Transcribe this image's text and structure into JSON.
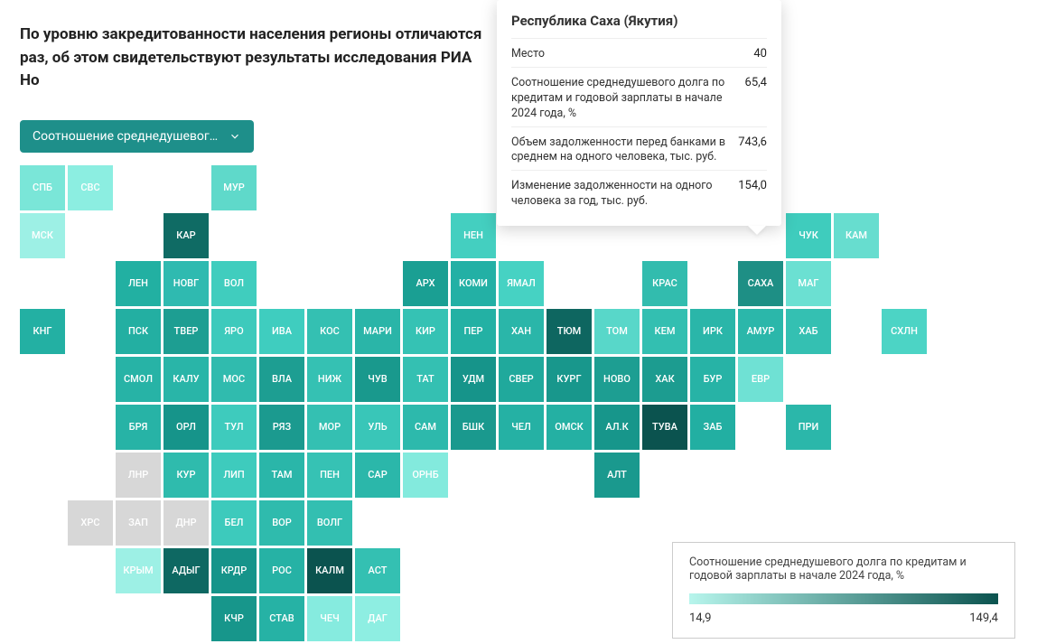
{
  "intro_text": "По уровню закредитованности населения регионы отличаются раз, об этом свидетельствуют результаты исследования РИА Но",
  "selector_label": "Соотношение среднедушевог…",
  "cell": {
    "size": 50,
    "gap": 3,
    "label_color": "#ffffff",
    "label_fontsize": 11
  },
  "tooltip": {
    "title": "Республика Саха (Якутия)",
    "rows": [
      {
        "label": "Место",
        "value": "40"
      },
      {
        "label": "Соотношение среднедушевого долга по кредитам и годовой зарплаты в начале 2024 года, %",
        "value": "65,4"
      },
      {
        "label": "Объем задолженности перед банками в среднем на одного человека, тыс. руб.",
        "value": "743,6"
      },
      {
        "label": "Изменение задолженности на одного человека за год, тыс. руб.",
        "value": "154,0"
      }
    ]
  },
  "legend": {
    "title": "Соотношение среднедушевого долга по кредитам и годовой зарплаты в начале 2024 года, %",
    "min": "14,9",
    "max": "149,4",
    "gradient_start": "#b7f5ec",
    "gradient_end": "#0b534f"
  },
  "regions": [
    {
      "code": "СПБ",
      "row": 0,
      "col": 0,
      "color": "#7ae6d8"
    },
    {
      "code": "СВС",
      "row": 0,
      "col": 1,
      "color": "#8ceee1"
    },
    {
      "code": "МУР",
      "row": 0,
      "col": 4,
      "color": "#5fd9ca"
    },
    {
      "code": "МСК",
      "row": 1,
      "col": 0,
      "color": "#9df0e5"
    },
    {
      "code": "КАР",
      "row": 1,
      "col": 3,
      "color": "#0f6b64"
    },
    {
      "code": "НЕН",
      "row": 1,
      "col": 9,
      "color": "#44cfc0"
    },
    {
      "code": "ЧУК",
      "row": 1,
      "col": 16,
      "color": "#3fccbd"
    },
    {
      "code": "КАМ",
      "row": 1,
      "col": 17,
      "color": "#67ddcf"
    },
    {
      "code": "ЛЕН",
      "row": 2,
      "col": 2,
      "color": "#22b0a2"
    },
    {
      "code": "НОВГ",
      "row": 2,
      "col": 3,
      "color": "#2fbab0"
    },
    {
      "code": "ВОЛ",
      "row": 2,
      "col": 4,
      "color": "#40cdbe"
    },
    {
      "code": "АРХ",
      "row": 2,
      "col": 8,
      "color": "#1a9f93"
    },
    {
      "code": "КОМИ",
      "row": 2,
      "col": 9,
      "color": "#23b0a5"
    },
    {
      "code": "ЯМАЛ",
      "row": 2,
      "col": 10,
      "color": "#46d2c3"
    },
    {
      "code": "КРАС",
      "row": 2,
      "col": 13,
      "color": "#32bcae"
    },
    {
      "code": "САХА",
      "row": 2,
      "col": 15,
      "color": "#1e8f85"
    },
    {
      "code": "МАГ",
      "row": 2,
      "col": 16,
      "color": "#6be0d2"
    },
    {
      "code": "КНГ",
      "row": 3,
      "col": 0,
      "color": "#23b0a3"
    },
    {
      "code": "ПСК",
      "row": 3,
      "col": 2,
      "color": "#23afa2"
    },
    {
      "code": "ТВЕР",
      "row": 3,
      "col": 3,
      "color": "#1d9e92"
    },
    {
      "code": "ЯРО",
      "row": 3,
      "col": 4,
      "color": "#3dcabc"
    },
    {
      "code": "ИВА",
      "row": 3,
      "col": 5,
      "color": "#3fcdbf"
    },
    {
      "code": "КОС",
      "row": 3,
      "col": 6,
      "color": "#34c0b2"
    },
    {
      "code": "МАРИ",
      "row": 3,
      "col": 7,
      "color": "#2ab5a8"
    },
    {
      "code": "КИР",
      "row": 3,
      "col": 8,
      "color": "#35c2b4"
    },
    {
      "code": "ПЕР",
      "row": 3,
      "col": 9,
      "color": "#23b1a4"
    },
    {
      "code": "ХАН",
      "row": 3,
      "col": 10,
      "color": "#2ab6a9"
    },
    {
      "code": "ТЮМ",
      "row": 3,
      "col": 11,
      "color": "#0e6660"
    },
    {
      "code": "ТОМ",
      "row": 3,
      "col": 12,
      "color": "#58d7c9"
    },
    {
      "code": "КЕМ",
      "row": 3,
      "col": 13,
      "color": "#33bfb1"
    },
    {
      "code": "ИРК",
      "row": 3,
      "col": 14,
      "color": "#2ab6a9"
    },
    {
      "code": "АМУР",
      "row": 3,
      "col": 15,
      "color": "#2bb7aa"
    },
    {
      "code": "ХАБ",
      "row": 3,
      "col": 16,
      "color": "#34c0b2"
    },
    {
      "code": "СХЛН",
      "row": 3,
      "col": 18,
      "color": "#4cd4c5"
    },
    {
      "code": "СМОЛ",
      "row": 4,
      "col": 2,
      "color": "#27b3a6"
    },
    {
      "code": "КАЛУ",
      "row": 4,
      "col": 3,
      "color": "#29b5a8"
    },
    {
      "code": "МОС",
      "row": 4,
      "col": 4,
      "color": "#30bbae"
    },
    {
      "code": "ВЛА",
      "row": 4,
      "col": 5,
      "color": "#1d9e92"
    },
    {
      "code": "НИЖ",
      "row": 4,
      "col": 6,
      "color": "#35c1b3"
    },
    {
      "code": "ЧУВ",
      "row": 4,
      "col": 7,
      "color": "#19998d"
    },
    {
      "code": "ТАТ",
      "row": 4,
      "col": 8,
      "color": "#34c0b2"
    },
    {
      "code": "УДМ",
      "row": 4,
      "col": 9,
      "color": "#16948a"
    },
    {
      "code": "СВЕР",
      "row": 4,
      "col": 10,
      "color": "#20a99c"
    },
    {
      "code": "КУРГ",
      "row": 4,
      "col": 11,
      "color": "#18978c"
    },
    {
      "code": "НОВО",
      "row": 4,
      "col": 12,
      "color": "#1d9e92"
    },
    {
      "code": "ХАК",
      "row": 4,
      "col": 13,
      "color": "#1c9c90"
    },
    {
      "code": "БУР",
      "row": 4,
      "col": 14,
      "color": "#27b3a6"
    },
    {
      "code": "ЕВР",
      "row": 4,
      "col": 15,
      "color": "#6fe1d4"
    },
    {
      "code": "БРЯ",
      "row": 5,
      "col": 2,
      "color": "#27b3a6"
    },
    {
      "code": "ОРЛ",
      "row": 5,
      "col": 3,
      "color": "#16948a"
    },
    {
      "code": "ТУЛ",
      "row": 5,
      "col": 4,
      "color": "#3ecbbd"
    },
    {
      "code": "РЯЗ",
      "row": 5,
      "col": 5,
      "color": "#1b9a8f"
    },
    {
      "code": "МОР",
      "row": 5,
      "col": 6,
      "color": "#34c0b2"
    },
    {
      "code": "УЛЬ",
      "row": 5,
      "col": 7,
      "color": "#39c6b8"
    },
    {
      "code": "САМ",
      "row": 5,
      "col": 8,
      "color": "#2db9ac"
    },
    {
      "code": "БШК",
      "row": 5,
      "col": 9,
      "color": "#1a998e"
    },
    {
      "code": "ЧЕЛ",
      "row": 5,
      "col": 10,
      "color": "#25b1a4"
    },
    {
      "code": "ОМСК",
      "row": 5,
      "col": 11,
      "color": "#24b0a3"
    },
    {
      "code": "АЛ.К",
      "row": 5,
      "col": 12,
      "color": "#17968b"
    },
    {
      "code": "ТУВА",
      "row": 5,
      "col": 13,
      "color": "#0b534f"
    },
    {
      "code": "ЗАБ",
      "row": 5,
      "col": 14,
      "color": "#22afa2"
    },
    {
      "code": "ПРИ",
      "row": 5,
      "col": 16,
      "color": "#2bb7aa"
    },
    {
      "code": "ЛНР",
      "row": 6,
      "col": 2,
      "color": "#d7d7d7"
    },
    {
      "code": "КУР",
      "row": 6,
      "col": 3,
      "color": "#2fbbad"
    },
    {
      "code": "ЛИП",
      "row": 6,
      "col": 4,
      "color": "#3ecbbd"
    },
    {
      "code": "ТАМ",
      "row": 6,
      "col": 5,
      "color": "#2ab6a9"
    },
    {
      "code": "ПЕН",
      "row": 6,
      "col": 6,
      "color": "#36c2b4"
    },
    {
      "code": "САР",
      "row": 6,
      "col": 7,
      "color": "#2bb7aa"
    },
    {
      "code": "ОРНБ",
      "row": 6,
      "col": 8,
      "color": "#83eadd"
    },
    {
      "code": "АЛТ",
      "row": 6,
      "col": 12,
      "color": "#1a998e"
    },
    {
      "code": "ХРС",
      "row": 7,
      "col": 1,
      "color": "#d7d7d7"
    },
    {
      "code": "ЗАП",
      "row": 7,
      "col": 2,
      "color": "#d7d7d7"
    },
    {
      "code": "ДНР",
      "row": 7,
      "col": 3,
      "color": "#d7d7d7"
    },
    {
      "code": "БЕЛ",
      "row": 7,
      "col": 4,
      "color": "#3dcabc"
    },
    {
      "code": "ВОР",
      "row": 7,
      "col": 5,
      "color": "#2fbbad"
    },
    {
      "code": "ВОЛГ",
      "row": 7,
      "col": 6,
      "color": "#33bfb1"
    },
    {
      "code": "КРЫМ",
      "row": 8,
      "col": 2,
      "color": "#9df0e5"
    },
    {
      "code": "АДЫГ",
      "row": 8,
      "col": 3,
      "color": "#0e6862"
    },
    {
      "code": "КРДР",
      "row": 8,
      "col": 4,
      "color": "#16948a"
    },
    {
      "code": "РОС",
      "row": 8,
      "col": 5,
      "color": "#26b2a5"
    },
    {
      "code": "КАЛМ",
      "row": 8,
      "col": 6,
      "color": "#0b534f"
    },
    {
      "code": "АСТ",
      "row": 8,
      "col": 7,
      "color": "#34c0b2"
    },
    {
      "code": "КЧР",
      "row": 9,
      "col": 4,
      "color": "#17968b"
    },
    {
      "code": "СТАВ",
      "row": 9,
      "col": 5,
      "color": "#26b2a5"
    },
    {
      "code": "ЧЕЧ",
      "row": 9,
      "col": 6,
      "color": "#86ebdf"
    },
    {
      "code": "ДАГ",
      "row": 9,
      "col": 7,
      "color": "#8eeee2"
    }
  ]
}
